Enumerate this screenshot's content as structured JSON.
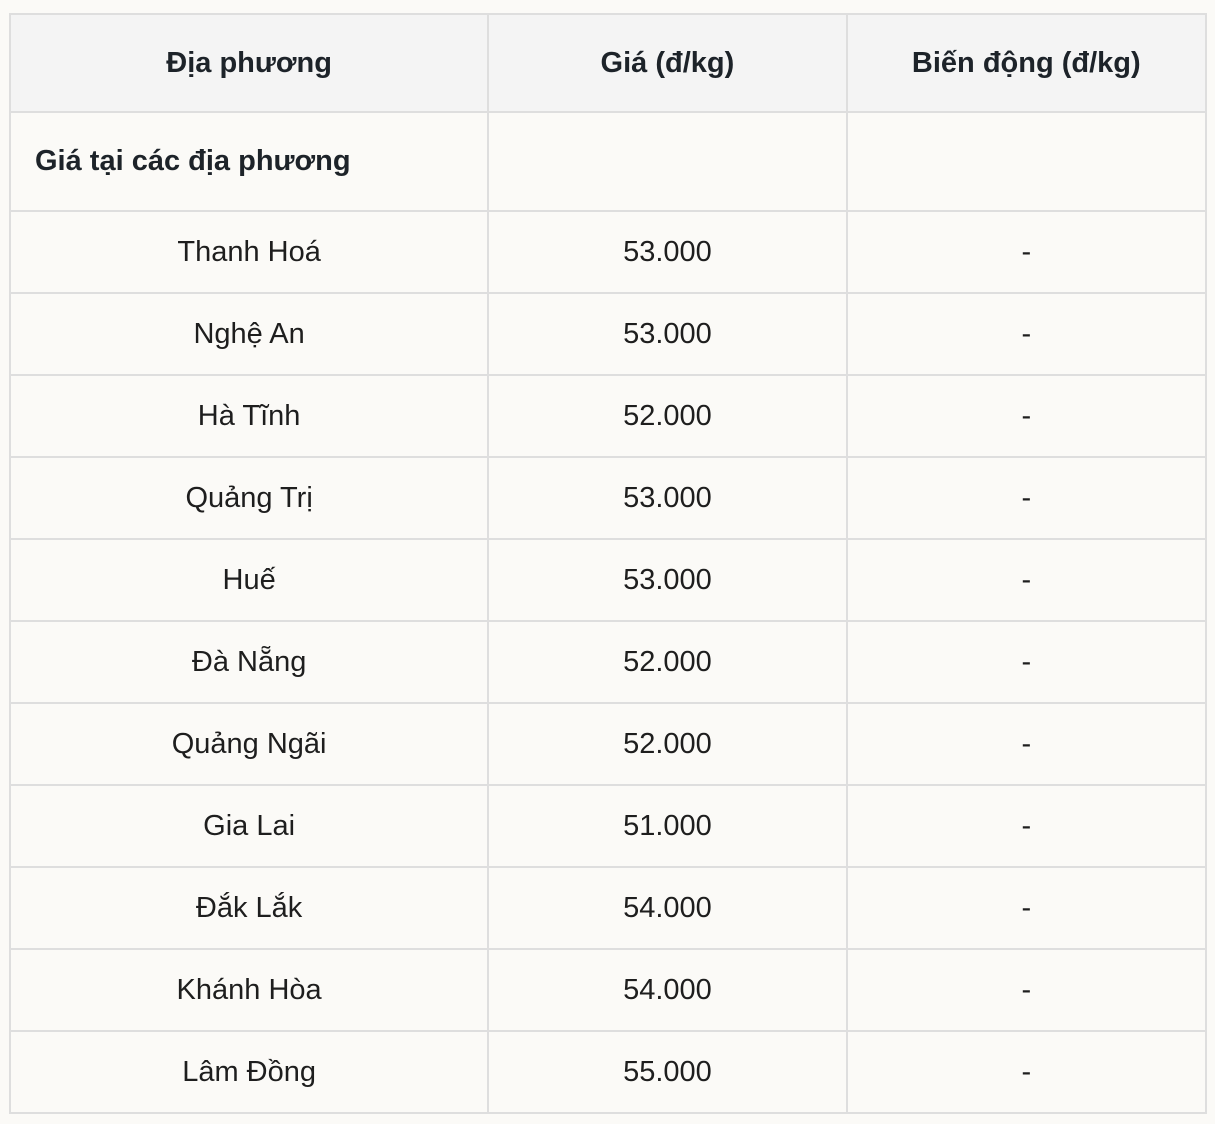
{
  "table": {
    "headers": [
      "Địa phương",
      "Giá (đ/kg)",
      "Biến động (đ/kg)"
    ],
    "section_label": "Giá tại các địa phương",
    "rows": [
      [
        "Thanh Hoá",
        "53.000",
        "-"
      ],
      [
        "Nghệ An",
        "53.000",
        "-"
      ],
      [
        "Hà Tĩnh",
        "52.000",
        "-"
      ],
      [
        "Quảng Trị",
        "53.000",
        "-"
      ],
      [
        "Huế",
        "53.000",
        "-"
      ],
      [
        "Đà Nẵng",
        "52.000",
        "-"
      ],
      [
        "Quảng Ngãi",
        "52.000",
        "-"
      ],
      [
        "Gia Lai",
        "51.000",
        "-"
      ],
      [
        "Đắk Lắk",
        "54.000",
        "-"
      ],
      [
        "Khánh Hòa",
        "54.000",
        "-"
      ],
      [
        "Lâm Đồng",
        "55.000",
        "-"
      ]
    ]
  }
}
